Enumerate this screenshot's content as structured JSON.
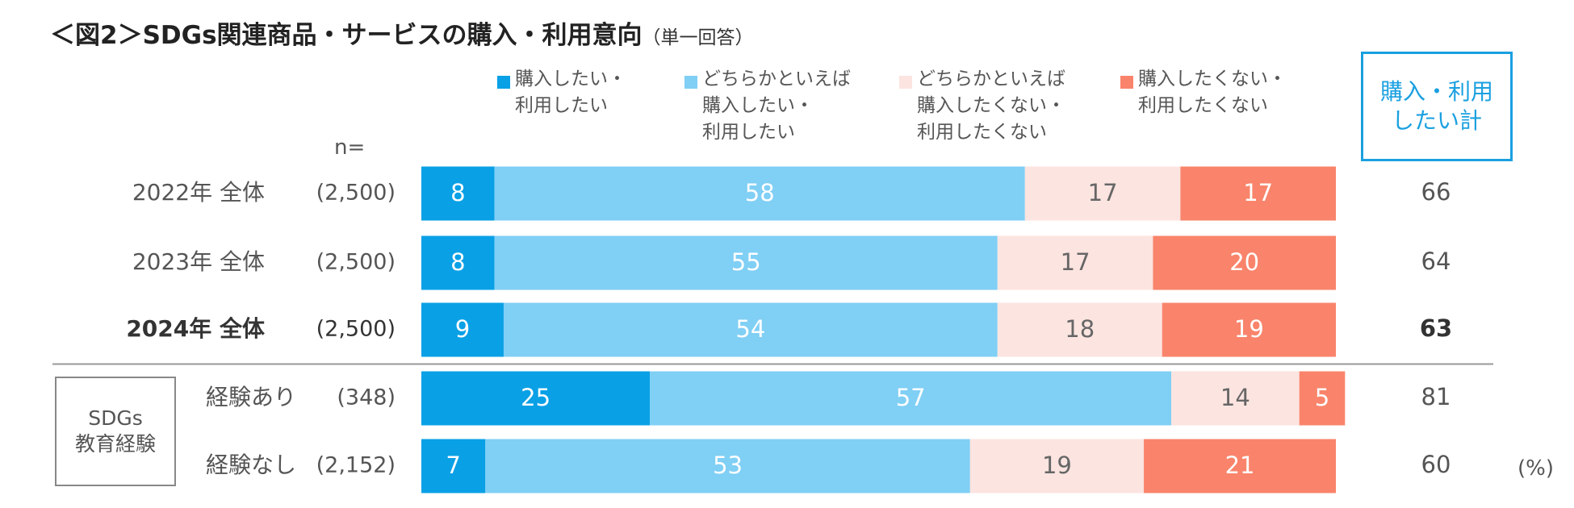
{
  "chart_data": {
    "type": "stacked_bar_horizontal",
    "title": "＜図2＞SDGs関連商品・サービスの購入・利用意向",
    "subtitle": "（単一回答）",
    "n_label": "n=",
    "unit_label": "(%)",
    "categories": [
      "2022年 全体",
      "2023年 全体",
      "2024年 全体",
      "経験あり",
      "経験なし"
    ],
    "n_values": [
      "(2,500)",
      "(2,500)",
      "(2,500)",
      "(348)",
      "(2,152)"
    ],
    "highlight_category": 2,
    "group": {
      "label": "SDGs\n教育経験",
      "rows": [
        3,
        4
      ]
    },
    "xlim": [
      0,
      100
    ],
    "series": [
      {
        "name": "購入したい・\n利用したい",
        "color": "#0aa0e6",
        "label_color": "#ffffff",
        "values": [
          8,
          8,
          9,
          25,
          7
        ]
      },
      {
        "name": "どちらかといえば\n購入したい・\n利用したい",
        "color": "#80cff5",
        "label_color": "#ffffff",
        "values": [
          58,
          55,
          54,
          57,
          53
        ]
      },
      {
        "name": "どちらかといえば\n購入したくない・\n利用したくない",
        "color": "#fce4e0",
        "label_color": "#666666",
        "values": [
          17,
          17,
          18,
          14,
          19
        ]
      },
      {
        "name": "購入したくない・\n利用したくない",
        "color": "#f9846b",
        "label_color": "#ffffff",
        "values": [
          17,
          20,
          19,
          5,
          21
        ]
      }
    ],
    "total": {
      "name": "購入・利用\nしたい計",
      "color": "#1aa0e0",
      "values": [
        66,
        64,
        63,
        81,
        60
      ]
    }
  }
}
